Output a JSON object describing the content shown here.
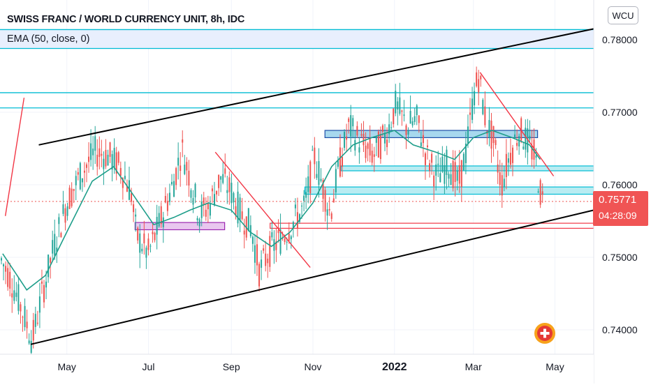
{
  "title": "SWISS FRANC / WORLD CURRENCY UNIT, 8h, IDC",
  "indicator": "EMA (50, close, 0)",
  "currency_badge": "WCU",
  "last_price": {
    "value": "0.75771",
    "countdown": "04:28:09"
  },
  "colors": {
    "candle_up": "#26a69a",
    "candle_down": "#ef5350",
    "ema": "#1e9e8a",
    "channel": "#000000",
    "cyan_levels": "#00bcd4",
    "trendline_red": "#f23645",
    "zone_blue": "#1e4fa8",
    "zone_purple": "#9c27b0",
    "price_tag": "#f05454",
    "grid": "#f0f3fa"
  },
  "chart_data": {
    "type": "candlestick",
    "title": "SWISS FRANC / WORLD CURRENCY UNIT, 8h, IDC",
    "y_range": [
      0.7375,
      0.782
    ],
    "y_ticks": [
      "0.78000",
      "0.77000",
      "0.76000",
      "0.75000",
      "0.74000"
    ],
    "x_ticks": [
      "May",
      "Jul",
      "Sep",
      "Nov",
      "2022",
      "Mar",
      "May"
    ],
    "x_range": [
      "2021-03-12",
      "2022-05-30"
    ],
    "grid": true,
    "last_price": 0.75771,
    "series": [
      {
        "name": "EMA (50, close, 0)",
        "points": [
          [
            "2021-03-14",
            0.7505
          ],
          [
            "2021-04-01",
            0.7455
          ],
          [
            "2021-04-15",
            0.7475
          ],
          [
            "2021-05-01",
            0.7535
          ],
          [
            "2021-05-20",
            0.7605
          ],
          [
            "2021-06-05",
            0.7625
          ],
          [
            "2021-06-20",
            0.7585
          ],
          [
            "2021-07-05",
            0.7545
          ],
          [
            "2021-07-20",
            0.7555
          ],
          [
            "2021-08-01",
            0.7565
          ],
          [
            "2021-08-15",
            0.7575
          ],
          [
            "2021-09-01",
            0.7565
          ],
          [
            "2021-09-15",
            0.7535
          ],
          [
            "2021-10-01",
            0.7515
          ],
          [
            "2021-10-15",
            0.7535
          ],
          [
            "2021-11-01",
            0.7575
          ],
          [
            "2021-11-15",
            0.7625
          ],
          [
            "2021-12-01",
            0.7655
          ],
          [
            "2021-12-15",
            0.7665
          ],
          [
            "2022-01-01",
            0.7675
          ],
          [
            "2022-01-15",
            0.7655
          ],
          [
            "2022-02-01",
            0.7645
          ],
          [
            "2022-02-15",
            0.7635
          ],
          [
            "2022-03-01",
            0.7665
          ],
          [
            "2022-03-15",
            0.7675
          ],
          [
            "2022-03-30",
            0.7665
          ],
          [
            "2022-04-12",
            0.7655
          ],
          [
            "2022-04-20",
            0.7635
          ]
        ]
      },
      {
        "name": "price",
        "points": [
          [
            "2021-03-12",
            0.75
          ],
          [
            "2021-03-20",
            0.747
          ],
          [
            "2021-03-28",
            0.743
          ],
          [
            "2021-04-05",
            0.7385
          ],
          [
            "2021-04-12",
            0.7445
          ],
          [
            "2021-04-22",
            0.752
          ],
          [
            "2021-05-01",
            0.7575
          ],
          [
            "2021-05-10",
            0.761
          ],
          [
            "2021-05-22",
            0.7645
          ],
          [
            "2021-06-01",
            0.764
          ],
          [
            "2021-06-10",
            0.7625
          ],
          [
            "2021-06-18",
            0.759
          ],
          [
            "2021-06-22",
            0.753
          ],
          [
            "2021-07-01",
            0.7505
          ],
          [
            "2021-07-10",
            0.755
          ],
          [
            "2021-07-20",
            0.7605
          ],
          [
            "2021-07-26",
            0.765
          ],
          [
            "2021-08-01",
            0.761
          ],
          [
            "2021-08-08",
            0.756
          ],
          [
            "2021-08-15",
            0.757
          ],
          [
            "2021-08-24",
            0.761
          ],
          [
            "2021-09-01",
            0.759
          ],
          [
            "2021-09-08",
            0.756
          ],
          [
            "2021-09-16",
            0.754
          ],
          [
            "2021-09-22",
            0.748
          ],
          [
            "2021-09-30",
            0.751
          ],
          [
            "2021-10-10",
            0.753
          ],
          [
            "2021-10-20",
            0.7555
          ],
          [
            "2021-10-26",
            0.757
          ],
          [
            "2021-11-02",
            0.764
          ],
          [
            "2021-11-08",
            0.76
          ],
          [
            "2021-11-14",
            0.756
          ],
          [
            "2021-11-20",
            0.762
          ],
          [
            "2021-11-28",
            0.768
          ],
          [
            "2021-12-06",
            0.766
          ],
          [
            "2021-12-16",
            0.764
          ],
          [
            "2021-12-26",
            0.767
          ],
          [
            "2022-01-02",
            0.771
          ],
          [
            "2022-01-10",
            0.768
          ],
          [
            "2022-01-18",
            0.769
          ],
          [
            "2022-01-25",
            0.764
          ],
          [
            "2022-02-02",
            0.761
          ],
          [
            "2022-02-10",
            0.763
          ],
          [
            "2022-02-18",
            0.76
          ],
          [
            "2022-02-24",
            0.765
          ],
          [
            "2022-03-01",
            0.772
          ],
          [
            "2022-03-05",
            0.775
          ],
          [
            "2022-03-10",
            0.769
          ],
          [
            "2022-03-16",
            0.766
          ],
          [
            "2022-03-22",
            0.76
          ],
          [
            "2022-03-28",
            0.764
          ],
          [
            "2022-04-04",
            0.7675
          ],
          [
            "2022-04-10",
            0.766
          ],
          [
            "2022-04-16",
            0.764
          ],
          [
            "2022-04-20",
            0.759
          ],
          [
            "2022-04-22",
            0.75771
          ]
        ]
      }
    ],
    "annotations": {
      "channel_upper": [
        [
          "2021-04-10",
          0.7655
        ],
        [
          "2022-05-30",
          0.7815
        ]
      ],
      "channel_lower": [
        [
          "2021-04-04",
          0.738
        ],
        [
          "2022-05-30",
          0.7565
        ]
      ],
      "cyan_horizontal_levels": [
        0.7814,
        0.7788,
        0.7727,
        0.7706
      ],
      "cyan_zone_top": [
        0.7814,
        0.7788
      ],
      "red_trendlines": [
        [
          [
            "2021-03-16",
            0.7557
          ],
          [
            "2021-03-30",
            0.772
          ]
        ],
        [
          [
            "2021-08-20",
            0.7645
          ],
          [
            "2021-10-30",
            0.7486
          ]
        ],
        [
          [
            "2022-03-06",
            0.7755
          ],
          [
            "2022-04-30",
            0.7612
          ]
        ]
      ],
      "zones": [
        {
          "color": "purple",
          "from": "2021-06-21",
          "to": "2021-08-27",
          "top": 0.7548,
          "bottom": 0.7538
        },
        {
          "color": "blue",
          "from": "2021-11-10",
          "to": "2022-04-18",
          "top": 0.7675,
          "bottom": 0.7665
        },
        {
          "color": "cyan",
          "from": "2021-11-22",
          "to": "2022-05-30",
          "top": 0.7626,
          "bottom": 0.7621
        },
        {
          "color": "cyan",
          "from": "2021-10-26",
          "to": "2022-05-30",
          "top": 0.7597,
          "bottom": 0.7587
        },
        {
          "color": "red",
          "from": "2021-09-30",
          "to": "2022-05-30",
          "top": 0.7547,
          "bottom": 0.754
        }
      ]
    }
  }
}
